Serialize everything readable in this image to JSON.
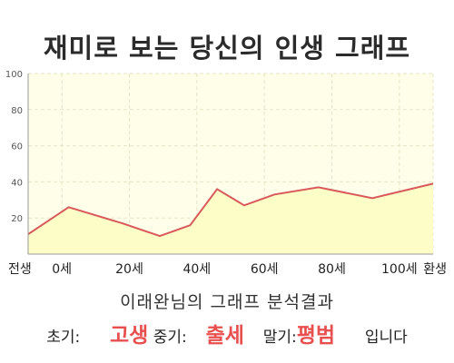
{
  "title": "재미로 보는 당신의 인생 그래프",
  "colors": {
    "fill": "#fdfdc8",
    "line": "#d9595b",
    "grid": "#e5e5c8",
    "axis": "#9a9a9a",
    "highlight": "#e8504f"
  },
  "chart_data": {
    "type": "area",
    "title": "재미로 보는 당신의 인생 그래프",
    "xlabel": "",
    "ylabel": "",
    "ylim": [
      0,
      100
    ],
    "y_ticks": [
      20,
      40,
      60,
      80,
      100
    ],
    "xlim": [
      -10,
      110
    ],
    "x_ticks": [
      {
        "x": -10,
        "label": "전생"
      },
      {
        "x": 0,
        "label": "0세"
      },
      {
        "x": 20,
        "label": "20세"
      },
      {
        "x": 40,
        "label": "40세"
      },
      {
        "x": 60,
        "label": "60세"
      },
      {
        "x": 80,
        "label": "80세"
      },
      {
        "x": 100,
        "label": "100세"
      },
      {
        "x": 110,
        "label": "환생"
      }
    ],
    "grid": true,
    "series": [
      {
        "x": [
          -10,
          2,
          18,
          29,
          38,
          46,
          54,
          63,
          76,
          92,
          110
        ],
        "values": [
          11,
          26,
          17,
          10,
          16,
          36,
          27,
          33,
          37,
          31,
          39
        ]
      }
    ]
  },
  "summary": {
    "heading": "이래완님의 그래프 분석결과",
    "early_label": "초기:",
    "early_value": "고생",
    "middle_label": "중기:",
    "middle_value": "출세",
    "late_label": "말기:",
    "late_value": "평범",
    "ending": "입니다"
  }
}
